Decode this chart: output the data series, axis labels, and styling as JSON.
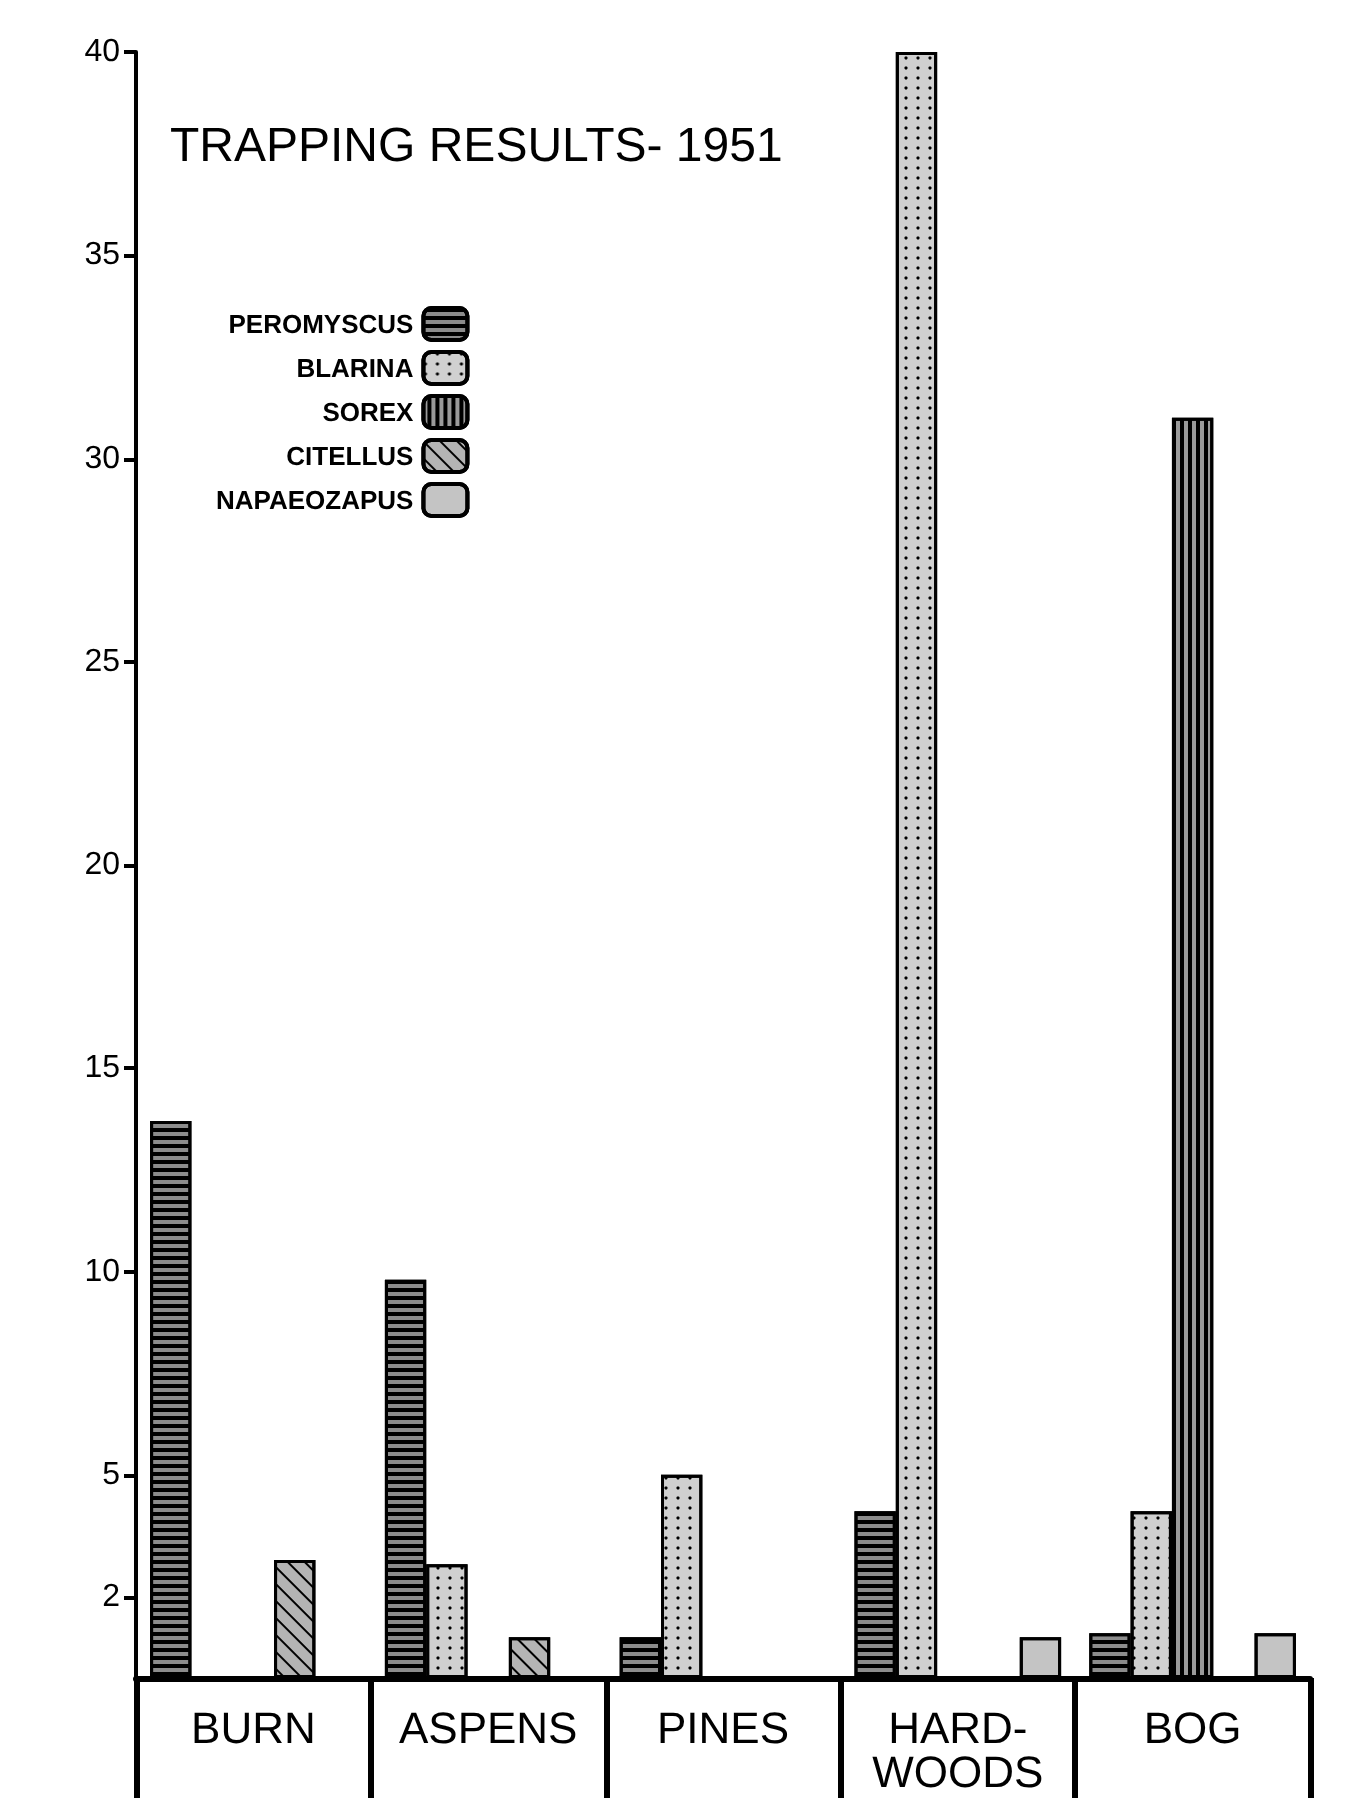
{
  "chart_data": {
    "type": "bar",
    "title": "TRAPPING RESULTS- 1951",
    "categories": [
      "BURN",
      "ASPENS",
      "PINES",
      "HARD-\nWOODS",
      "BOG"
    ],
    "series": [
      {
        "name": "PEROMYSCUS",
        "color": "#8c8c8c",
        "values": [
          13.7,
          9.8,
          1,
          4.1,
          1.1
        ]
      },
      {
        "name": "BLARINA",
        "color": "#d0d0d0",
        "values": [
          null,
          2.8,
          5,
          40,
          4.1
        ]
      },
      {
        "name": "SOREX",
        "color": "#9a9a9a",
        "values": [
          null,
          null,
          null,
          null,
          31
        ]
      },
      {
        "name": "CITELLUS",
        "color": "#b4b4b4",
        "values": [
          2.9,
          1,
          null,
          null,
          null
        ]
      },
      {
        "name": "NAPAEOZAPUS",
        "color": "#c4c4c4",
        "values": [
          null,
          null,
          null,
          1,
          1.1
        ]
      }
    ],
    "ylim": [
      0,
      40
    ],
    "yticks": [
      2,
      5,
      10,
      15,
      20,
      25,
      30,
      35,
      40
    ],
    "grid": false,
    "legend": "top left"
  }
}
